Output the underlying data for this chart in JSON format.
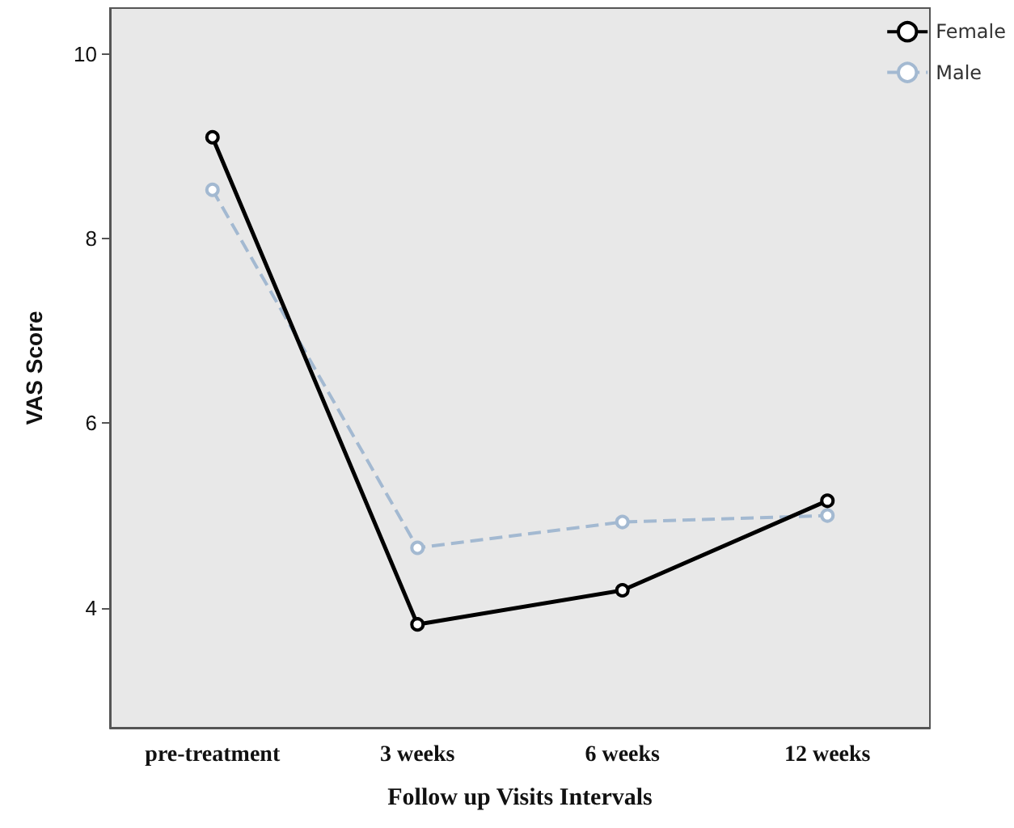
{
  "chart_data": {
    "type": "line",
    "xlabel": "Follow up Visits Intervals",
    "ylabel": "VAS Score",
    "categories": [
      "pre-treatment",
      "3 weeks",
      "6 weeks",
      "12 weeks"
    ],
    "series": [
      {
        "name": "Female",
        "color": "#000000",
        "values": [
          9.1,
          3.82,
          4.19,
          5.16
        ],
        "line_style": "solid"
      },
      {
        "name": "Male",
        "color": "#a3b9d1",
        "values": [
          8.53,
          4.65,
          4.93,
          5.0
        ],
        "line_style": "dashed"
      }
    ],
    "ylim": [
      2.7,
      10.5
    ],
    "yticks": [
      4,
      6,
      8,
      10
    ],
    "grid": false,
    "legend": "top right",
    "marker": "circle"
  }
}
